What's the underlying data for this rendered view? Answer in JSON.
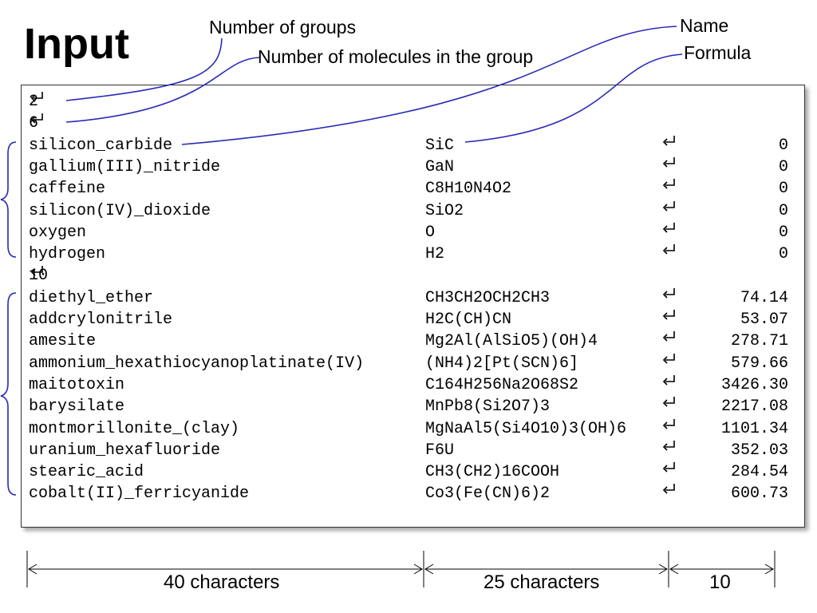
{
  "title": "Input",
  "annotations": {
    "num_groups": "Number of groups",
    "num_molecules": "Number of molecules in the group",
    "name": "Name",
    "formula": "Formula"
  },
  "file_lines": {
    "groups_count": "2",
    "group1_count": "6",
    "group1": [
      {
        "name": "silicon_carbide",
        "formula": "SiC",
        "value": "0"
      },
      {
        "name": "gallium(III)_nitride",
        "formula": "GaN",
        "value": "0"
      },
      {
        "name": "caffeine",
        "formula": "C8H10N4O2",
        "value": "0"
      },
      {
        "name": "silicon(IV)_dioxide",
        "formula": "SiO2",
        "value": "0"
      },
      {
        "name": "oxygen",
        "formula": "O",
        "value": "0"
      },
      {
        "name": "hydrogen",
        "formula": "H2",
        "value": "0"
      }
    ],
    "group2_count": "10",
    "group2": [
      {
        "name": "diethyl_ether",
        "formula": "CH3CH2OCH2CH3",
        "value": "74.14"
      },
      {
        "name": "addcrylonitrile",
        "formula": "H2C(CH)CN",
        "value": "53.07"
      },
      {
        "name": "amesite",
        "formula": "Mg2Al(AlSiO5)(OH)4",
        "value": "278.71"
      },
      {
        "name": "ammonium_hexathiocyanoplatinate(IV)",
        "formula": "(NH4)2[Pt(SCN)6]",
        "value": "579.66"
      },
      {
        "name": "maitotoxin",
        "formula": "C164H256Na2O68S2",
        "value": "3426.30"
      },
      {
        "name": "barysilate",
        "formula": "MnPb8(Si2O7)3",
        "value": "2217.08"
      },
      {
        "name": "montmorillonite_(clay)",
        "formula": "MgNaAl5(Si4O10)3(OH)6",
        "value": "1101.34"
      },
      {
        "name": "uranium_hexafluoride",
        "formula": "F6U",
        "value": "352.03"
      },
      {
        "name": "stearic_acid",
        "formula": "CH3(CH2)16COOH",
        "value": "284.54"
      },
      {
        "name": "cobalt(II)_ferricyanide",
        "formula": "Co3(Fe(CN)6)2",
        "value": "600.73"
      }
    ]
  },
  "widths": {
    "name_width": "40 characters",
    "formula_width": "25 characters",
    "value_width": "10"
  },
  "colors": {
    "annotation_line": "#2a2ab8"
  }
}
